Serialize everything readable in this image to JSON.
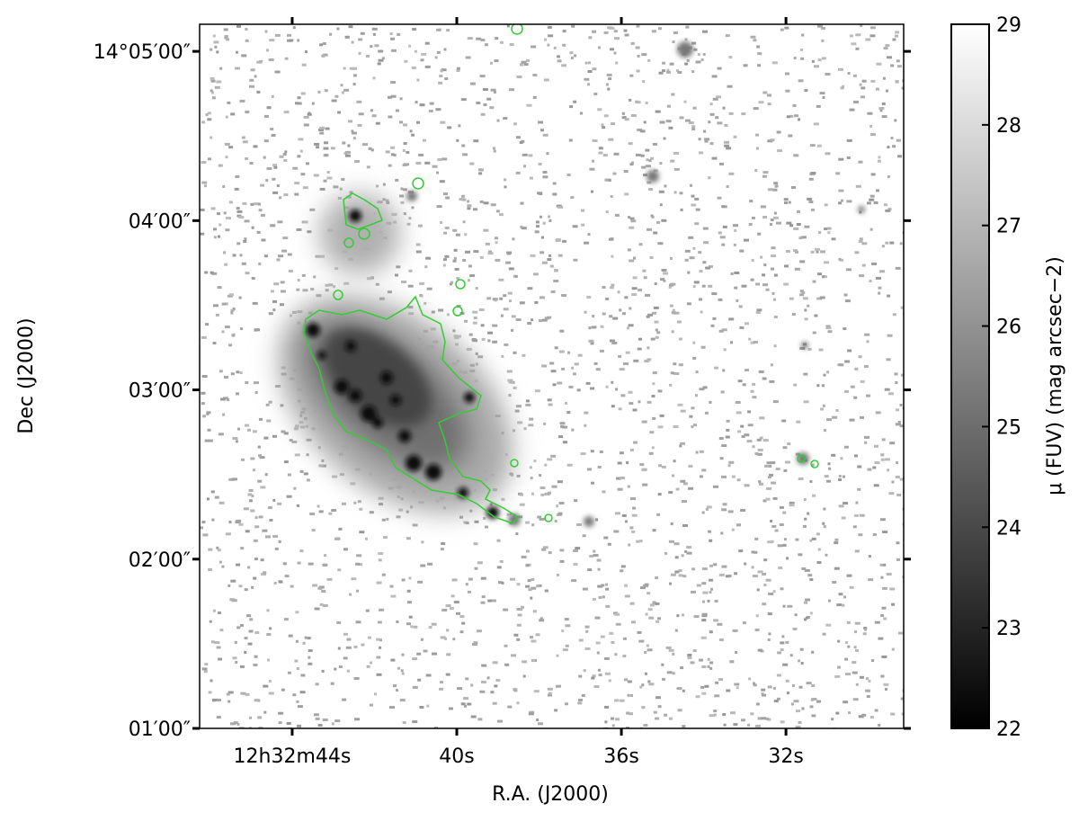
{
  "chart_data": {
    "type": "image",
    "xlabel": "R.A. (J2000)",
    "ylabel": "Dec (J2000)",
    "xlim": [
      46.25,
      29.14
    ],
    "xticks": [
      {
        "value": 44,
        "label": "12h32m44s"
      },
      {
        "value": 40,
        "label": "40s"
      },
      {
        "value": 36,
        "label": "36s"
      },
      {
        "value": 32,
        "label": "32s"
      }
    ],
    "ylim": [
      1,
      5.16
    ],
    "yticks": [
      {
        "value": 5,
        "label": "14°05′00″"
      },
      {
        "value": 4,
        "label": "04′00″"
      },
      {
        "value": 3,
        "label": "03′00″"
      },
      {
        "value": 2,
        "label": "02′00″"
      },
      {
        "value": 1,
        "label": "01′00″"
      }
    ],
    "colorbar": {
      "label": "μ (FUV) (mag arcsec−2)",
      "lim": [
        22,
        29
      ],
      "ticks": [
        22,
        23,
        24,
        25,
        26,
        27,
        28,
        29
      ],
      "colormap": "gray"
    },
    "contour_color": "#33cc33"
  }
}
